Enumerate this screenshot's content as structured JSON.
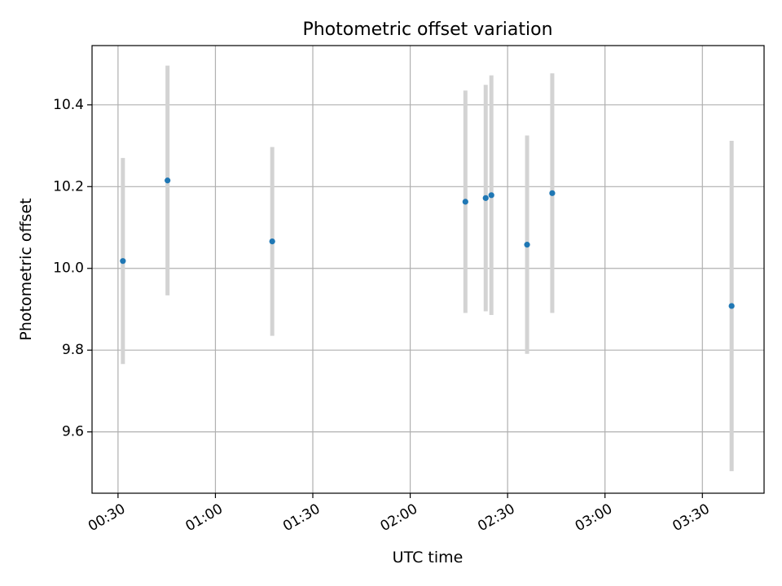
{
  "chart_data": {
    "type": "scatter",
    "title": "Photometric offset variation",
    "xlabel": "UTC time",
    "ylabel": "Photometric offset",
    "grid": true,
    "x_axis": "time",
    "xlim": [
      "00:22",
      "03:49"
    ],
    "ylim": [
      9.45,
      10.545
    ],
    "x_ticks": [
      "00:30",
      "01:00",
      "01:30",
      "02:00",
      "02:30",
      "03:00",
      "03:30"
    ],
    "y_ticks": [
      9.6,
      9.8,
      10.0,
      10.2,
      10.4
    ],
    "y_tick_labels": [
      "9.6",
      "9.8",
      "10.0",
      "10.2",
      "10.4"
    ],
    "series": [
      {
        "marker_color": "#1f77b4",
        "errorbar_color": "#d3d3d3",
        "points": [
          {
            "x": "00:31:30",
            "y": 10.018,
            "yerr": 0.252
          },
          {
            "x": "00:45:15",
            "y": 10.215,
            "yerr": 0.281
          },
          {
            "x": "01:17:30",
            "y": 10.066,
            "yerr": 0.231
          },
          {
            "x": "02:17:00",
            "y": 10.163,
            "yerr": 0.272
          },
          {
            "x": "02:23:15",
            "y": 10.172,
            "yerr": 0.277
          },
          {
            "x": "02:25:00",
            "y": 10.179,
            "yerr": 0.293
          },
          {
            "x": "02:36:00",
            "y": 10.058,
            "yerr": 0.267
          },
          {
            "x": "02:43:45",
            "y": 10.184,
            "yerr": 0.293
          },
          {
            "x": "03:39:00",
            "y": 9.908,
            "yerr": 0.404
          }
        ]
      }
    ]
  }
}
